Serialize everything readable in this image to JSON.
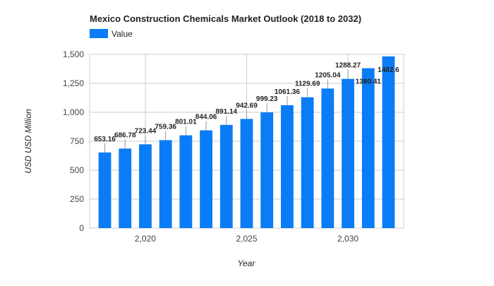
{
  "chart_data": {
    "type": "bar",
    "title": "Mexico Construction Chemicals Market Outlook (2018 to 2032)",
    "xlabel": "Year",
    "ylabel": "USD USD Million",
    "legend": {
      "position": "top-left",
      "entries": [
        "Value"
      ]
    },
    "colors": {
      "bar": "#0a7cf5",
      "grid": "#cccccc"
    },
    "grid": true,
    "ylim": [
      0,
      1500
    ],
    "y_ticks": [
      0,
      250,
      500,
      750,
      1000,
      1250,
      1500
    ],
    "y_tick_labels": [
      "0",
      "250",
      "500",
      "750",
      "1,000",
      "1,250",
      "1,500"
    ],
    "xlim": [
      2017.25,
      2032.75
    ],
    "x_ticks": [
      2020,
      2025,
      2030
    ],
    "x_tick_labels": [
      "2,020",
      "2,025",
      "2,030"
    ],
    "series": [
      {
        "name": "Value",
        "x": [
          2018,
          2019,
          2020,
          2021,
          2022,
          2023,
          2024,
          2025,
          2026,
          2027,
          2028,
          2029,
          2030,
          2031,
          2032
        ],
        "values": [
          653.16,
          686.78,
          723.44,
          759.36,
          801.01,
          844.06,
          891.14,
          942.69,
          999.23,
          1061.36,
          1129.69,
          1205.04,
          1288.27,
          1380.41,
          1482.6
        ],
        "labels": [
          "653.16",
          "686.78",
          "723.44",
          "759.36",
          "801.01",
          "844.06",
          "891.14",
          "942.69",
          "999.23",
          "1061.36",
          "1129.69",
          "1205.04",
          "1288.27",
          "1380.41",
          "1482.6"
        ]
      }
    ]
  }
}
